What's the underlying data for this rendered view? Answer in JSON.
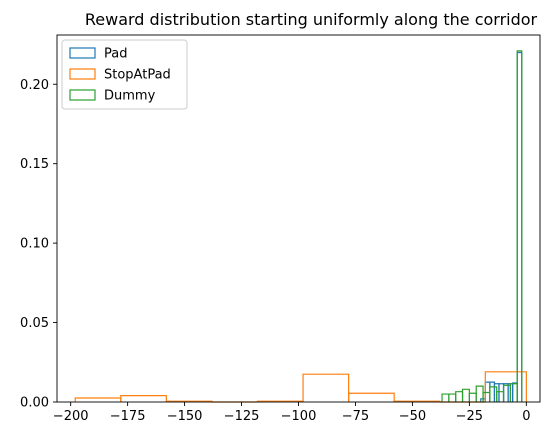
{
  "chart_data": {
    "type": "histogram",
    "title": "Reward distribution starting uniformly along the corridor",
    "xlabel": "",
    "ylabel": "",
    "xlim": [
      -206,
      6
    ],
    "ylim": [
      0,
      0.231
    ],
    "x_ticks": [
      -200,
      -175,
      -150,
      -125,
      -100,
      -75,
      -50,
      -25,
      0
    ],
    "x_tick_labels": [
      "−200",
      "−175",
      "−150",
      "−125",
      "−100",
      "−75",
      "−50",
      "−25",
      "0"
    ],
    "y_ticks": [
      0,
      0.05,
      0.1,
      0.15,
      0.2
    ],
    "y_tick_labels": [
      "0.00",
      "0.05",
      "0.10",
      "0.15",
      "0.20"
    ],
    "grid": false,
    "legend_position": "top-left",
    "series": [
      {
        "name": "Pad",
        "color": "#1f77b4",
        "bins": [
          {
            "x0": -20,
            "x1": -18,
            "y": 0.002
          },
          {
            "x0": -18,
            "x1": -16,
            "y": 0.0125
          },
          {
            "x0": -16,
            "x1": -14,
            "y": 0.0125
          },
          {
            "x0": -14,
            "x1": -12,
            "y": 0.0115
          },
          {
            "x0": -12,
            "x1": -10,
            "y": 0.0115
          },
          {
            "x0": -10,
            "x1": -8,
            "y": 0.0115
          },
          {
            "x0": -8,
            "x1": -6,
            "y": 0.0115
          },
          {
            "x0": -6,
            "x1": -4,
            "y": 0.012
          },
          {
            "x0": -4,
            "x1": -2,
            "y": 0.22
          }
        ]
      },
      {
        "name": "StopAtPad",
        "color": "#ff7f0e",
        "bins": [
          {
            "x0": -198,
            "x1": -178,
            "y": 0.0025
          },
          {
            "x0": -178,
            "x1": -158,
            "y": 0.004
          },
          {
            "x0": -158,
            "x1": -138,
            "y": 0.0005
          },
          {
            "x0": -138,
            "x1": -118,
            "y": 0.0
          },
          {
            "x0": -118,
            "x1": -98,
            "y": 0.0005
          },
          {
            "x0": -98,
            "x1": -78,
            "y": 0.0175
          },
          {
            "x0": -78,
            "x1": -58,
            "y": 0.0055
          },
          {
            "x0": -58,
            "x1": -38,
            "y": 0.0005
          },
          {
            "x0": -38,
            "x1": -18,
            "y": 0.0
          },
          {
            "x0": -18,
            "x1": 0,
            "y": 0.019
          }
        ]
      },
      {
        "name": "Dummy",
        "color": "#2ca02c",
        "bins": [
          {
            "x0": -37,
            "x1": -34,
            "y": 0.005
          },
          {
            "x0": -34,
            "x1": -31,
            "y": 0.005
          },
          {
            "x0": -31,
            "x1": -28,
            "y": 0.0065
          },
          {
            "x0": -28,
            "x1": -25,
            "y": 0.008
          },
          {
            "x0": -25,
            "x1": -22,
            "y": 0.0055
          },
          {
            "x0": -22,
            "x1": -19,
            "y": 0.01
          },
          {
            "x0": -19,
            "x1": -16,
            "y": 0.006
          },
          {
            "x0": -16,
            "x1": -13,
            "y": 0.0095
          },
          {
            "x0": -13,
            "x1": -10,
            "y": 0.0065
          },
          {
            "x0": -10,
            "x1": -7,
            "y": 0.0105
          },
          {
            "x0": -7,
            "x1": -4,
            "y": 0.0115
          },
          {
            "x0": -4,
            "x1": -2,
            "y": 0.221
          }
        ]
      }
    ]
  }
}
